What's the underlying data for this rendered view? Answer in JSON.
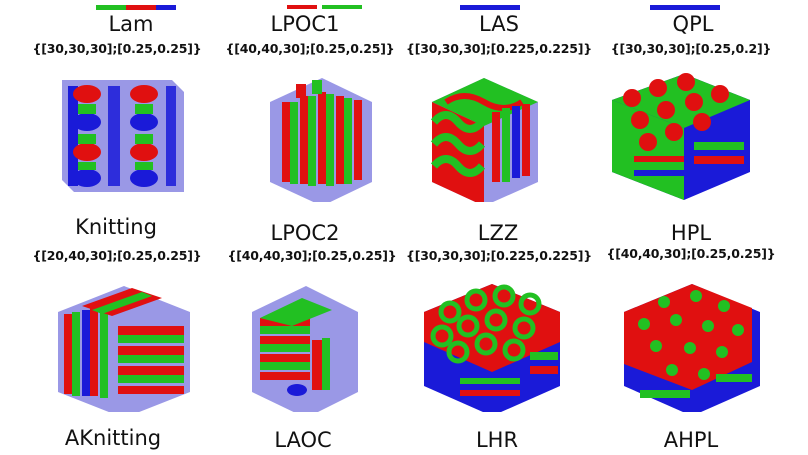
{
  "colors": {
    "red": "#e01010",
    "green": "#22c022",
    "blue": "#1a1ad8",
    "lavender": "#9a98e6"
  },
  "rows": [
    [
      {
        "name": "Lam",
        "param": "{[30,30,30];[0.25,0.25]}"
      },
      {
        "name": "LPOC1",
        "param": "{[40,40,30];[0.25,0.25]}"
      },
      {
        "name": "LAS",
        "param": "{[30,30,30];[0.225,0.225]}"
      },
      {
        "name": "QPL",
        "param": "{[30,30,30];[0.25,0.2]}"
      }
    ],
    [
      {
        "name": "Knitting",
        "param": "{[20,40,30];[0.25,0.25]}",
        "icon": "knitting-morphology"
      },
      {
        "name": "LPOC2",
        "param": "{[40,40,30];[0.25,0.25]}",
        "icon": "lamellae-cylinders-morphology"
      },
      {
        "name": "LZZ",
        "param": "{[30,30,30];[0.225,0.225]}",
        "icon": "zigzag-morphology"
      },
      {
        "name": "HPL",
        "param": "{[40,40,30];[0.25,0.25]}",
        "icon": "hexagonal-perforated-morphology"
      }
    ],
    [
      {
        "name": "AKnitting",
        "icon": "knitting-morphology"
      },
      {
        "name": "LAOC",
        "icon": "lamellae-cylinders-morphology"
      },
      {
        "name": "LHR",
        "icon": "rings-morphology"
      },
      {
        "name": "AHPL",
        "icon": "dots-morphology"
      }
    ]
  ]
}
